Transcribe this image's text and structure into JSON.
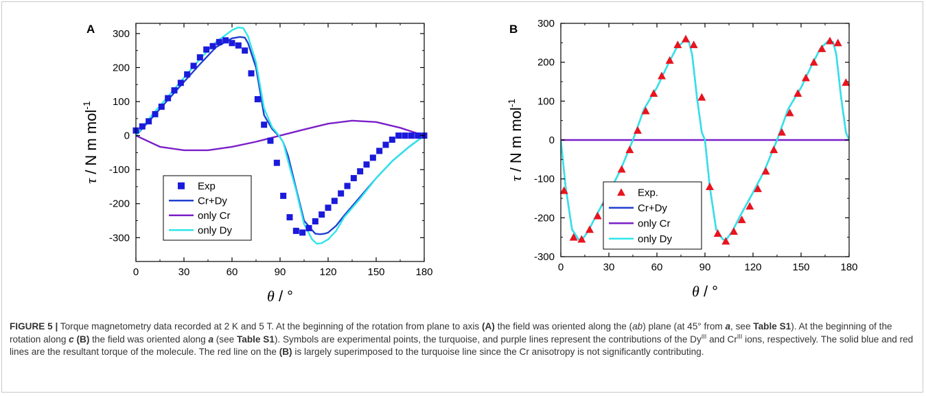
{
  "caption": {
    "label": "FIGURE 5 |",
    "s1": " Torque magnetometry data recorded at 2 K and 5 T. At the beginning of the rotation from plane to axis ",
    "panelA": "(A)",
    "s2": " the field was oriented along the (",
    "ab": "ab",
    "s3": ") plane (at 45° from ",
    "a1": "a",
    "s4": ", see ",
    "tableS1a": "Table S1",
    "s5": "). At the beginning of the rotation along ",
    "c": "c",
    "s6": " ",
    "panelB": "(B)",
    "s7": " the field was oriented along ",
    "a2": "a",
    "s8": " (see ",
    "tableS1b": "Table S1",
    "s9": "). Symbols are experimental points, the turquoise, and purple lines represent the contributions of the Dy",
    "dy_sup": "III",
    "s10": " and Cr",
    "cr_sup": "III",
    "s11": " ions, respectively. The solid blue and red lines are the resultant torque of the molecule. The red line on the ",
    "panelB2": "(B)",
    "s12": " is largely superimposed to the turquoise line since the Cr anisotropy is not significantly contributing."
  },
  "colors": {
    "exp_a": "#1a1adb",
    "exp_b": "#e8141e",
    "crdy": "#1f3fd0",
    "onlycr": "#7a1fc8",
    "onlydy": "#2ee6ea",
    "axis": "#000000"
  },
  "chart_data": [
    {
      "panel": "A",
      "type": "line",
      "xlabel_sym": "θ",
      "xlabel_unit": " / °",
      "ylabel_sym": "τ",
      "ylabel_unit": " / N m mol",
      "ylabel_sup": "-1",
      "xlim": [
        0,
        180
      ],
      "ylim": [
        -370,
        330
      ],
      "xticks": [
        0,
        30,
        60,
        90,
        120,
        150,
        180
      ],
      "yticks": [
        -300,
        -200,
        -100,
        0,
        100,
        200,
        300
      ],
      "legend_position": "bottom-left",
      "series": [
        {
          "name": "Exp",
          "kind": "scatter",
          "marker": "square",
          "color": "#1a1adb",
          "x": [
            0,
            4,
            8,
            12,
            16,
            20,
            24,
            28,
            32,
            36,
            40,
            44,
            48,
            52,
            56,
            60,
            64,
            68,
            72,
            76,
            80,
            84,
            88,
            92,
            96,
            100,
            104,
            108,
            112,
            116,
            120,
            124,
            128,
            132,
            136,
            140,
            144,
            148,
            152,
            156,
            160,
            164,
            168,
            172,
            176,
            180
          ],
          "y": [
            15,
            27,
            42,
            63,
            85,
            110,
            133,
            155,
            180,
            205,
            230,
            253,
            263,
            275,
            280,
            272,
            265,
            250,
            183,
            107,
            32,
            -15,
            -80,
            -177,
            -240,
            -280,
            -285,
            -272,
            -252,
            -232,
            -212,
            -192,
            -170,
            -148,
            -125,
            -105,
            -85,
            -65,
            -45,
            -27,
            -12,
            0,
            0,
            0,
            0,
            0
          ]
        },
        {
          "name": "Cr+Dy",
          "kind": "line",
          "color": "#1f3fd0",
          "x": [
            0,
            10,
            20,
            30,
            40,
            50,
            60,
            65,
            68,
            70,
            75,
            80,
            85,
            88,
            90,
            92,
            95,
            100,
            105,
            110,
            112,
            115,
            118,
            120,
            125,
            130,
            140,
            150,
            160,
            170,
            180
          ],
          "y": [
            0,
            52,
            105,
            158,
            210,
            260,
            286,
            290,
            288,
            272,
            200,
            60,
            20,
            5,
            -5,
            -20,
            -60,
            -155,
            -250,
            -278,
            -288,
            -290,
            -288,
            -285,
            -265,
            -235,
            -180,
            -125,
            -75,
            -35,
            0
          ]
        },
        {
          "name": "only Cr",
          "kind": "line",
          "color": "#7a1fc8",
          "x": [
            0,
            15,
            30,
            45,
            60,
            75,
            90,
            105,
            120,
            135,
            150,
            165,
            180
          ],
          "y": [
            0,
            -33,
            -43,
            -43,
            -33,
            -18,
            0,
            18,
            35,
            44,
            40,
            23,
            0
          ]
        },
        {
          "name": "only Dy",
          "kind": "line",
          "color": "#2ee6ea",
          "x": [
            0,
            10,
            20,
            30,
            40,
            50,
            60,
            64,
            67,
            70,
            75,
            80,
            85,
            88,
            90,
            92,
            95,
            100,
            105,
            110,
            113,
            116,
            120,
            125,
            130,
            140,
            150,
            160,
            170,
            180
          ],
          "y": [
            0,
            60,
            115,
            170,
            225,
            275,
            310,
            318,
            316,
            292,
            215,
            80,
            25,
            8,
            -5,
            -20,
            -75,
            -160,
            -260,
            -305,
            -318,
            -316,
            -305,
            -280,
            -240,
            -185,
            -125,
            -75,
            -35,
            0
          ]
        }
      ]
    },
    {
      "panel": "B",
      "type": "line",
      "xlabel_sym": "θ",
      "xlabel_unit": " / °",
      "ylabel_sym": "τ",
      "ylabel_unit": " / N m mol",
      "ylabel_sup": "-1",
      "xlim": [
        0,
        180
      ],
      "ylim": [
        -300,
        300
      ],
      "xticks": [
        0,
        30,
        60,
        90,
        120,
        150,
        180
      ],
      "yticks": [
        -300,
        -200,
        -100,
        0,
        100,
        200,
        300
      ],
      "legend_position": "bottom-left",
      "series": [
        {
          "name": "Exp.",
          "kind": "scatter",
          "marker": "triangle",
          "color": "#e8141e",
          "x": [
            2,
            8,
            13,
            18,
            23,
            28,
            33,
            38,
            43,
            48,
            53,
            58,
            63,
            68,
            73,
            78,
            83,
            88,
            93,
            98,
            103,
            108,
            113,
            118,
            123,
            128,
            133,
            138,
            143,
            148,
            153,
            158,
            163,
            168,
            173,
            178
          ],
          "y": [
            -130,
            -250,
            -255,
            -230,
            -195,
            -160,
            -120,
            -75,
            -25,
            25,
            75,
            120,
            165,
            205,
            245,
            260,
            245,
            110,
            -120,
            -240,
            -260,
            -235,
            -205,
            -170,
            -125,
            -80,
            -25,
            20,
            70,
            120,
            160,
            200,
            235,
            255,
            250,
            148
          ]
        },
        {
          "name": "Cr+Dy",
          "kind": "line",
          "color": "#1f3fd0",
          "x": [
            0,
            3,
            7,
            11,
            13,
            17,
            22,
            30,
            37,
            45,
            52,
            60,
            67,
            72,
            77,
            80,
            82,
            85,
            88,
            90,
            93,
            97,
            101,
            103,
            107,
            112,
            120,
            127,
            135,
            142,
            150,
            157,
            162,
            167,
            170,
            172,
            175,
            178,
            180
          ],
          "y": [
            0,
            -120,
            -230,
            -255,
            -258,
            -235,
            -195,
            -135,
            -80,
            0,
            80,
            135,
            195,
            235,
            255,
            252,
            220,
            110,
            20,
            0,
            -120,
            -230,
            -255,
            -258,
            -235,
            -195,
            -135,
            -80,
            0,
            80,
            135,
            195,
            235,
            255,
            252,
            220,
            110,
            20,
            0
          ]
        },
        {
          "name": "only Cr",
          "kind": "line",
          "color": "#7a1fc8",
          "x": [
            0,
            180
          ],
          "y": [
            0,
            0
          ]
        },
        {
          "name": "only Dy",
          "kind": "line",
          "color": "#2ee6ea",
          "x": [
            0,
            3,
            7,
            11,
            13,
            17,
            22,
            30,
            37,
            45,
            52,
            60,
            67,
            72,
            77,
            80,
            82,
            85,
            88,
            90,
            93,
            97,
            101,
            103,
            107,
            112,
            120,
            127,
            135,
            142,
            150,
            157,
            162,
            167,
            170,
            172,
            175,
            178,
            180
          ],
          "y": [
            0,
            -120,
            -230,
            -255,
            -258,
            -235,
            -195,
            -135,
            -80,
            0,
            80,
            135,
            195,
            235,
            255,
            252,
            220,
            110,
            20,
            0,
            -120,
            -230,
            -255,
            -258,
            -235,
            -195,
            -135,
            -80,
            0,
            80,
            135,
            195,
            235,
            255,
            252,
            220,
            110,
            20,
            0
          ]
        }
      ]
    }
  ]
}
